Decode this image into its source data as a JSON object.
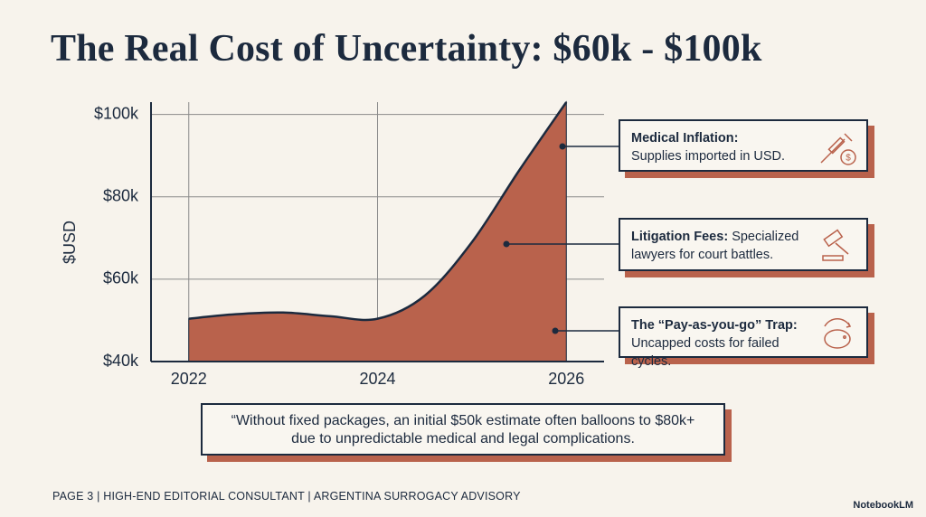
{
  "title": "The Real Cost of Uncertainty: $60k - $100k",
  "chart_data": {
    "type": "area",
    "y_label": "$USD",
    "x": [
      2022,
      2022.5,
      2023,
      2023.5,
      2024,
      2024.5,
      2025,
      2025.5,
      2026
    ],
    "values": [
      50400,
      51500,
      51900,
      51000,
      50400,
      56000,
      69000,
      86400,
      103000
    ],
    "color": "#b9624c",
    "line_color": "#1c2a3e",
    "xlim": [
      2021.6,
      2026.4
    ],
    "xticks": [
      2022,
      2024,
      2026
    ],
    "ylim": [
      40000,
      103000
    ],
    "yticks": [
      {
        "value": 40000,
        "label": "$40k"
      },
      {
        "value": 60000,
        "label": "$60k"
      },
      {
        "value": 80000,
        "label": "$80k"
      },
      {
        "value": 100000,
        "label": "$100k"
      }
    ],
    "grid": true,
    "annotations": [
      {
        "title": "Medical Inflation:",
        "text": "Supplies imported in USD."
      },
      {
        "title": "Litigation Fees:",
        "text": "Specialized lawyers for court battles."
      },
      {
        "title": "The “Pay-as-you-go” Trap:",
        "text": "Uncapped costs for failed cycles."
      }
    ]
  },
  "quote": "“Without fixed packages, an initial $50k estimate often balloons to $80k+ due to unpredictable medical and legal complications.",
  "footer": "PAGE 3  |  HIGH-END EDITORIAL CONSULTANT  |  ARGENTINA SURROGACY ADVISORY",
  "brand": "NotebookLM"
}
